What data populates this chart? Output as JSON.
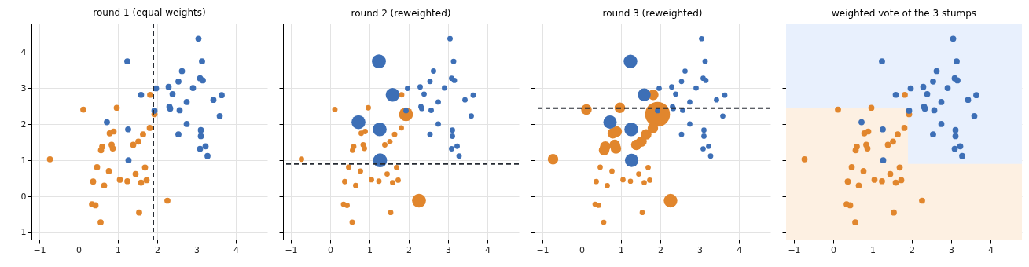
{
  "chart_data": [
    {
      "type": "scatter",
      "title": "round 1 (equal weights)",
      "xlim": [
        -1.2,
        4.8
      ],
      "ylim": [
        -1.2,
        4.8
      ],
      "xticks": [
        -1,
        0,
        1,
        2,
        3,
        4
      ],
      "yticks": [
        -1,
        0,
        1,
        2,
        3,
        4
      ],
      "grid": true,
      "marker": "circle",
      "series": [
        {
          "color": "#e1862d",
          "x": [
            -0.73,
            0.12,
            0.97,
            1.82,
            1.93,
            1.81,
            1.64,
            1.52,
            1.39,
            0.79,
            0.89,
            0.6,
            0.57,
            0.84,
            0.87,
            0.47,
            0.77,
            0.37,
            0.65,
            1.05,
            1.24,
            1.45,
            1.69,
            1.59,
            1.73,
            0.34,
            0.43,
            0.56,
            1.54,
            2.26
          ],
          "values": [
            1.03,
            2.41,
            2.46,
            2.82,
            2.28,
            1.9,
            1.72,
            1.52,
            1.43,
            1.75,
            1.8,
            1.38,
            1.28,
            1.43,
            1.33,
            0.81,
            0.7,
            0.41,
            0.3,
            0.46,
            0.42,
            0.62,
            0.8,
            0.38,
            0.45,
            -0.22,
            -0.25,
            -0.72,
            -0.45,
            -0.12
          ]
        },
        {
          "color": "#3d6fb6",
          "x": [
            3.05,
            1.24,
            3.14,
            2.63,
            2.54,
            3.09,
            3.16,
            1.97,
            2.29,
            2.91,
            2.39,
            1.59,
            3.64,
            3.43,
            2.75,
            2.31,
            2.33,
            1.93,
            2.57,
            3.59,
            0.72,
            2.75,
            1.26,
            2.54,
            3.11,
            3.11,
            3.09,
            3.23,
            3.28,
            1.27
          ],
          "values": [
            4.38,
            3.75,
            3.75,
            3.48,
            3.19,
            3.28,
            3.22,
            3.0,
            3.04,
            3.01,
            2.84,
            2.82,
            2.81,
            2.68,
            2.62,
            2.49,
            2.44,
            2.38,
            2.39,
            2.23,
            2.06,
            2.01,
            1.86,
            1.72,
            1.84,
            1.67,
            1.32,
            1.39,
            1.12,
            1.0
          ]
        }
      ],
      "ref_lines": [
        {
          "axis": "x",
          "value": 1.9,
          "color": "#262b33",
          "line_style": "dashed"
        }
      ]
    },
    {
      "type": "bubble",
      "title": "round 2 (reweighted)",
      "xlim": [
        -1.2,
        4.8
      ],
      "ylim": [
        -1.2,
        4.8
      ],
      "xticks": [
        -1,
        0,
        1,
        2,
        3,
        4
      ],
      "yticks": [
        -1,
        0,
        1,
        2,
        3,
        4
      ],
      "grid": true,
      "marker": "circle",
      "tick_labels": "x",
      "series": [
        {
          "color": "#e1862d",
          "x": [
            -0.73,
            0.12,
            0.97,
            1.82,
            1.93,
            1.81,
            1.64,
            1.52,
            1.39,
            0.79,
            0.89,
            0.6,
            0.57,
            0.84,
            0.87,
            0.47,
            0.77,
            0.37,
            0.65,
            1.05,
            1.24,
            1.45,
            1.69,
            1.59,
            1.73,
            0.34,
            0.43,
            0.56,
            1.54,
            2.26
          ],
          "values": [
            1.03,
            2.41,
            2.46,
            2.82,
            2.28,
            1.9,
            1.72,
            1.52,
            1.43,
            1.75,
            1.8,
            1.38,
            1.28,
            1.43,
            1.33,
            0.81,
            0.7,
            0.41,
            0.3,
            0.46,
            0.42,
            0.62,
            0.8,
            0.38,
            0.45,
            -0.22,
            -0.25,
            -0.72,
            -0.45,
            -0.12
          ],
          "sizes": [
            0.15,
            0.15,
            0.15,
            0.15,
            1,
            0.15,
            0.15,
            0.15,
            0.15,
            0.15,
            0.15,
            0.15,
            0.15,
            0.15,
            0.15,
            0.15,
            0.15,
            0.15,
            0.15,
            0.15,
            0.15,
            0.15,
            0.15,
            0.15,
            0.15,
            0.15,
            0.15,
            0.15,
            0.15,
            1
          ]
        },
        {
          "color": "#3d6fb6",
          "x": [
            3.05,
            1.24,
            3.14,
            2.63,
            2.54,
            3.09,
            3.16,
            1.97,
            2.29,
            2.91,
            2.39,
            1.59,
            3.64,
            3.43,
            2.75,
            2.31,
            2.33,
            1.93,
            2.57,
            3.59,
            0.72,
            2.75,
            1.26,
            2.54,
            3.11,
            3.11,
            3.09,
            3.23,
            3.28,
            1.27
          ],
          "values": [
            4.38,
            3.75,
            3.75,
            3.48,
            3.19,
            3.28,
            3.22,
            3.0,
            3.04,
            3.01,
            2.84,
            2.82,
            2.81,
            2.68,
            2.62,
            2.49,
            2.44,
            2.38,
            2.39,
            2.23,
            2.06,
            2.01,
            1.86,
            1.72,
            1.84,
            1.67,
            1.32,
            1.39,
            1.12,
            1.0
          ],
          "sizes": [
            0.15,
            1,
            0.15,
            0.15,
            0.15,
            0.15,
            0.15,
            0.15,
            0.15,
            0.15,
            0.15,
            1,
            0.15,
            0.15,
            0.15,
            0.15,
            0.15,
            0.15,
            0.15,
            0.15,
            1,
            0.15,
            1,
            0.15,
            0.15,
            0.15,
            0.15,
            0.15,
            0.15,
            1
          ]
        }
      ],
      "ref_lines": [
        {
          "axis": "y",
          "value": 0.9,
          "color": "#262b33",
          "line_style": "dashed"
        }
      ]
    },
    {
      "type": "bubble",
      "title": "round 3 (reweighted)",
      "xlim": [
        -1.2,
        4.8
      ],
      "ylim": [
        -1.2,
        4.8
      ],
      "xticks": [
        -1,
        0,
        1,
        2,
        3,
        4
      ],
      "yticks": [
        -1,
        0,
        1,
        2,
        3,
        4
      ],
      "grid": true,
      "marker": "circle",
      "tick_labels": "x",
      "series": [
        {
          "color": "#e1862d",
          "x": [
            -0.73,
            0.12,
            0.97,
            1.82,
            1.93,
            1.81,
            1.64,
            1.52,
            1.39,
            0.79,
            0.89,
            0.6,
            0.57,
            0.84,
            0.87,
            0.47,
            0.77,
            0.37,
            0.65,
            1.05,
            1.24,
            1.45,
            1.69,
            1.59,
            1.73,
            0.34,
            0.43,
            0.56,
            1.54,
            2.26
          ],
          "values": [
            1.03,
            2.41,
            2.46,
            2.82,
            2.28,
            1.9,
            1.72,
            1.52,
            1.43,
            1.75,
            1.8,
            1.38,
            1.28,
            1.43,
            1.33,
            0.81,
            0.7,
            0.41,
            0.3,
            0.46,
            0.42,
            0.62,
            0.8,
            0.38,
            0.45,
            -0.22,
            -0.25,
            -0.72,
            -0.45,
            -0.12
          ],
          "sizes": [
            0.18,
            0.18,
            0.18,
            0.18,
            1,
            0.18,
            0.18,
            0.18,
            0.18,
            0.18,
            0.18,
            0.18,
            0.18,
            0.18,
            0.18,
            0.045,
            0.045,
            0.045,
            0.045,
            0.045,
            0.045,
            0.045,
            0.045,
            0.045,
            0.045,
            0.045,
            0.045,
            0.045,
            0.045,
            0.3
          ]
        },
        {
          "color": "#3d6fb6",
          "x": [
            3.05,
            1.24,
            3.14,
            2.63,
            2.54,
            3.09,
            3.16,
            1.97,
            2.29,
            2.91,
            2.39,
            1.59,
            3.64,
            3.43,
            2.75,
            2.31,
            2.33,
            1.93,
            2.57,
            3.59,
            0.72,
            2.75,
            1.26,
            2.54,
            3.11,
            3.11,
            3.09,
            3.23,
            3.28,
            1.27
          ],
          "values": [
            4.38,
            3.75,
            3.75,
            3.48,
            3.19,
            3.28,
            3.22,
            3.0,
            3.04,
            3.01,
            2.84,
            2.82,
            2.81,
            2.68,
            2.62,
            2.49,
            2.44,
            2.38,
            2.39,
            2.23,
            2.06,
            2.01,
            1.86,
            1.72,
            1.84,
            1.67,
            1.32,
            1.39,
            1.12,
            1.0
          ],
          "sizes": [
            0.045,
            0.3,
            0.045,
            0.045,
            0.045,
            0.045,
            0.045,
            0.045,
            0.045,
            0.045,
            0.045,
            0.27,
            0.045,
            0.045,
            0.045,
            0.045,
            0.045,
            0.045,
            0.045,
            0.045,
            0.29,
            0.045,
            0.31,
            0.045,
            0.045,
            0.045,
            0.045,
            0.045,
            0.045,
            0.29
          ]
        }
      ],
      "ref_lines": [
        {
          "axis": "y",
          "value": 2.45,
          "color": "#262b33",
          "line_style": "dashed"
        }
      ]
    },
    {
      "type": "scatter",
      "title": "weighted vote of the 3 stumps",
      "xlim": [
        -1.2,
        4.8
      ],
      "ylim": [
        -1.2,
        4.8
      ],
      "xticks": [
        -1,
        0,
        1,
        2,
        3,
        4
      ],
      "yticks": [
        -1,
        0,
        1,
        2,
        3,
        4
      ],
      "grid": true,
      "marker": "circle",
      "tick_labels": "x",
      "bands": [
        {
          "axis": "x",
          "from": -1.2,
          "to": 1.9,
          "color": "#fdf0e2"
        },
        {
          "axis": "x",
          "from": 1.9,
          "to": 4.8,
          "color": "#e8f0fd"
        },
        {
          "axis": "y",
          "from": 2.45,
          "to": 4.8,
          "color": "#e8f0fd"
        },
        {
          "axis": "y",
          "from": -1.2,
          "to": 0.9,
          "color": "#fdf0e2"
        }
      ],
      "series": [
        {
          "color": "#e1862d",
          "x": [
            -0.73,
            0.12,
            0.97,
            1.82,
            1.93,
            1.81,
            1.64,
            1.52,
            1.39,
            0.79,
            0.89,
            0.6,
            0.57,
            0.84,
            0.87,
            0.47,
            0.77,
            0.37,
            0.65,
            1.05,
            1.24,
            1.45,
            1.69,
            1.59,
            1.73,
            0.34,
            0.43,
            0.56,
            1.54,
            2.26
          ],
          "values": [
            1.03,
            2.41,
            2.46,
            2.82,
            2.28,
            1.9,
            1.72,
            1.52,
            1.43,
            1.75,
            1.8,
            1.38,
            1.28,
            1.43,
            1.33,
            0.81,
            0.7,
            0.41,
            0.3,
            0.46,
            0.42,
            0.62,
            0.8,
            0.38,
            0.45,
            -0.22,
            -0.25,
            -0.72,
            -0.45,
            -0.12
          ]
        },
        {
          "color": "#3d6fb6",
          "x": [
            3.05,
            1.24,
            3.14,
            2.63,
            2.54,
            3.09,
            3.16,
            1.97,
            2.29,
            2.91,
            2.39,
            1.59,
            3.64,
            3.43,
            2.75,
            2.31,
            2.33,
            1.93,
            2.57,
            3.59,
            0.72,
            2.75,
            1.26,
            2.54,
            3.11,
            3.11,
            3.09,
            3.23,
            3.28,
            1.27
          ],
          "values": [
            4.38,
            3.75,
            3.75,
            3.48,
            3.19,
            3.28,
            3.22,
            3.0,
            3.04,
            3.01,
            2.84,
            2.82,
            2.81,
            2.68,
            2.62,
            2.49,
            2.44,
            2.38,
            2.39,
            2.23,
            2.06,
            2.01,
            1.86,
            1.72,
            1.84,
            1.67,
            1.32,
            1.39,
            1.12,
            1.0
          ]
        }
      ]
    }
  ]
}
